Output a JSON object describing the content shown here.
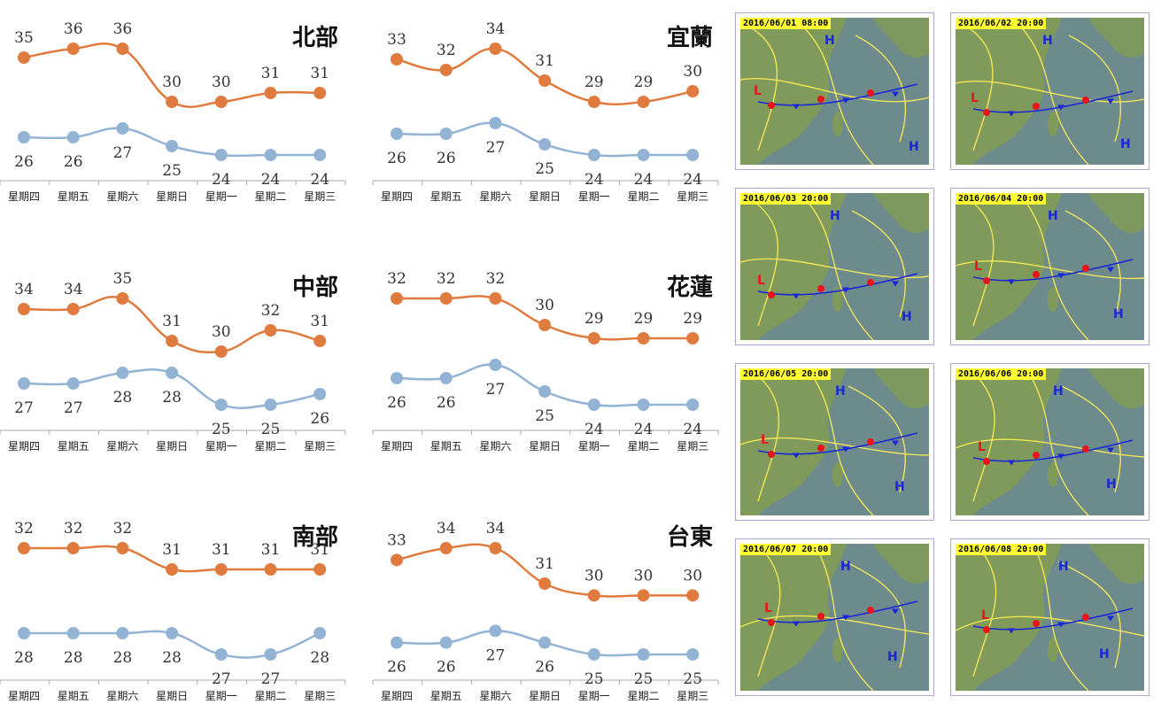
{
  "colors": {
    "high": "#e07b3f",
    "low": "#93b3d4",
    "axis": "#aaaaaa",
    "map_sea": "#6d8a8c",
    "map_land": "#7f9a5a",
    "isobar": "#ffee55",
    "front_warm": "#e8151b",
    "front_cold": "#1a27d6",
    "pressure_high": "#1a27d6",
    "pressure_low": "#e8151b"
  },
  "chart_data": [
    {
      "type": "line",
      "region": "北部",
      "title": "北部",
      "categories": [
        "星期四",
        "星期五",
        "星期六",
        "星期日",
        "星期一",
        "星期二",
        "星期三"
      ],
      "series": [
        {
          "values": [
            35,
            36,
            36,
            30,
            30,
            31,
            31
          ]
        },
        {
          "values": [
            26,
            26,
            27,
            25,
            24,
            24,
            24
          ]
        }
      ]
    },
    {
      "type": "line",
      "region": "宜蘭",
      "title": "宜蘭",
      "categories": [
        "星期四",
        "星期五",
        "星期六",
        "星期日",
        "星期一",
        "星期二",
        "星期三"
      ],
      "series": [
        {
          "values": [
            33,
            32,
            34,
            31,
            29,
            29,
            30
          ]
        },
        {
          "values": [
            26,
            26,
            27,
            25,
            24,
            24,
            24
          ]
        }
      ]
    },
    {
      "type": "line",
      "region": "中部",
      "title": "中部",
      "categories": [
        "星期四",
        "星期五",
        "星期六",
        "星期日",
        "星期一",
        "星期二",
        "星期三"
      ],
      "series": [
        {
          "values": [
            34,
            34,
            35,
            31,
            30,
            32,
            31
          ]
        },
        {
          "values": [
            27,
            27,
            28,
            28,
            25,
            25,
            26
          ]
        }
      ]
    },
    {
      "type": "line",
      "region": "花蓮",
      "title": "花蓮",
      "categories": [
        "星期四",
        "星期五",
        "星期六",
        "星期日",
        "星期一",
        "星期二",
        "星期三"
      ],
      "series": [
        {
          "values": [
            32,
            32,
            32,
            30,
            29,
            29,
            29
          ]
        },
        {
          "values": [
            26,
            26,
            27,
            25,
            24,
            24,
            24
          ]
        }
      ]
    },
    {
      "type": "line",
      "region": "南部",
      "title": "南部",
      "categories": [
        "星期四",
        "星期五",
        "星期六",
        "星期日",
        "星期一",
        "星期二",
        "星期三"
      ],
      "series": [
        {
          "values": [
            32,
            32,
            32,
            31,
            31,
            31,
            31
          ]
        },
        {
          "values": [
            28,
            28,
            28,
            28,
            27,
            27,
            28
          ]
        }
      ]
    },
    {
      "type": "line",
      "region": "台東",
      "title": "台東",
      "categories": [
        "星期四",
        "星期五",
        "星期六",
        "星期日",
        "星期一",
        "星期二",
        "星期三"
      ],
      "series": [
        {
          "values": [
            33,
            34,
            34,
            31,
            30,
            30,
            30
          ]
        },
        {
          "values": [
            26,
            26,
            27,
            26,
            25,
            25,
            25
          ]
        }
      ]
    }
  ],
  "maps": [
    {
      "date": "2016/06/01 08:00"
    },
    {
      "date": "2016/06/02 20:00"
    },
    {
      "date": "2016/06/03 20:00"
    },
    {
      "date": "2016/06/04 20:00"
    },
    {
      "date": "2016/06/05 20:00"
    },
    {
      "date": "2016/06/06 20:00"
    },
    {
      "date": "2016/06/07 20:00"
    },
    {
      "date": "2016/06/08 20:00"
    }
  ]
}
